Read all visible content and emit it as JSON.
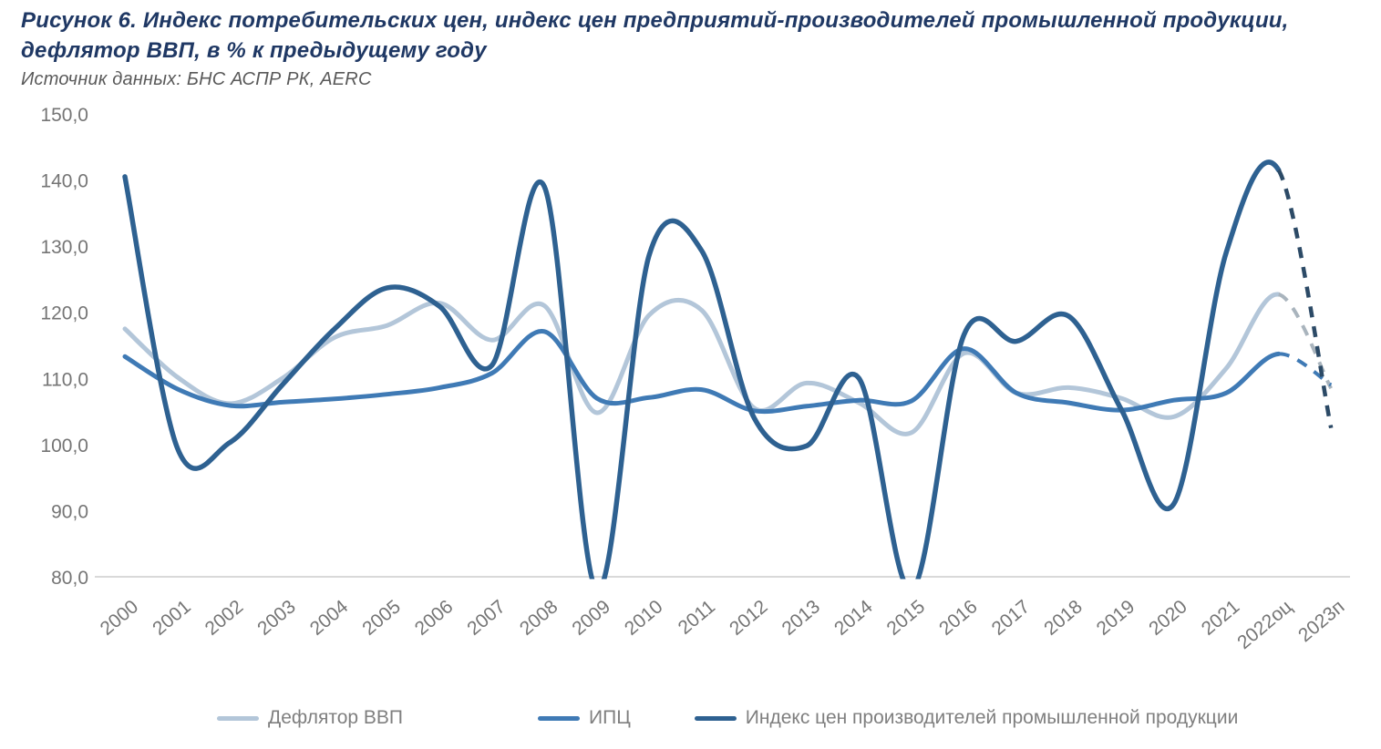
{
  "header": {
    "title_line1": "Рисунок 6. Индекс потребительских цен, индекс цен предприятий-производителей промышленной продукции,",
    "title_line2": "дефлятор ВВП, в % к предыдущему году",
    "source": "Источник данных:  БНС АСПР РК, AERC"
  },
  "colors": {
    "title_text": "#1f3864",
    "source_text": "#595959",
    "axis_text": "#757575",
    "axis_line": "#d9d9d9",
    "legend_text": "#7f7f7f"
  },
  "chart_data": {
    "type": "line",
    "title": "Индекс потребительских цен, индекс цен предприятий-производителей промышленной продукции, дефлятор ВВП, в % к предыдущему году",
    "xlabel": "",
    "ylabel": "",
    "ylim": [
      80,
      150
    ],
    "grid": false,
    "legend_position": "bottom",
    "smooth": true,
    "forecast_from_index": 22,
    "x_labels": [
      "2000",
      "2001",
      "2002",
      "2003",
      "2004",
      "2005",
      "2006",
      "2007",
      "2008",
      "2009",
      "2010",
      "2011",
      "2012",
      "2013",
      "2014",
      "2015",
      "2016",
      "2017",
      "2018",
      "2019",
      "2020",
      "2021",
      "2022оц",
      "2023п"
    ],
    "y_ticks": [
      {
        "v": 150,
        "label": "150,0"
      },
      {
        "v": 140,
        "label": "140,0"
      },
      {
        "v": 130,
        "label": "130,0"
      },
      {
        "v": 120,
        "label": "120,0"
      },
      {
        "v": 110,
        "label": "110,0"
      },
      {
        "v": 100,
        "label": "100,0"
      },
      {
        "v": 90,
        "label": "90,0"
      },
      {
        "v": 80,
        "label": "80,0"
      }
    ],
    "series": [
      {
        "name": "Дефлятор ВВП",
        "color": "#b3c6d9",
        "dash_color": "#a9b4bd",
        "values": [
          117.5,
          110.2,
          106.2,
          110.0,
          116.2,
          118.0,
          121.4,
          115.8,
          121.0,
          104.8,
          119.6,
          120.3,
          105.5,
          109.3,
          106.3,
          101.8,
          113.8,
          107.8,
          108.6,
          107.0,
          104.2,
          111.5,
          122.7,
          108.5
        ]
      },
      {
        "name": "ИПЦ",
        "color": "#3f7ab5",
        "dash_color": "#3f7ab5",
        "values": [
          113.3,
          108.4,
          105.9,
          106.4,
          106.9,
          107.6,
          108.6,
          110.8,
          117.1,
          107.0,
          107.1,
          108.3,
          105.1,
          105.8,
          106.7,
          106.6,
          114.5,
          107.8,
          106.3,
          105.2,
          106.7,
          107.8,
          113.7,
          109.0
        ]
      },
      {
        "name": "Индекс цен производителей промышленной продукции",
        "color": "#2e6191",
        "dash_color": "#2c4a66",
        "values": [
          140.5,
          99.5,
          100.3,
          109.0,
          117.5,
          123.7,
          120.9,
          112.0,
          139.0,
          78.0,
          128.7,
          129.3,
          104.0,
          99.8,
          110.0,
          78.0,
          116.6,
          115.6,
          119.4,
          105.3,
          91.0,
          129.0,
          141.5,
          102.5
        ]
      }
    ]
  }
}
